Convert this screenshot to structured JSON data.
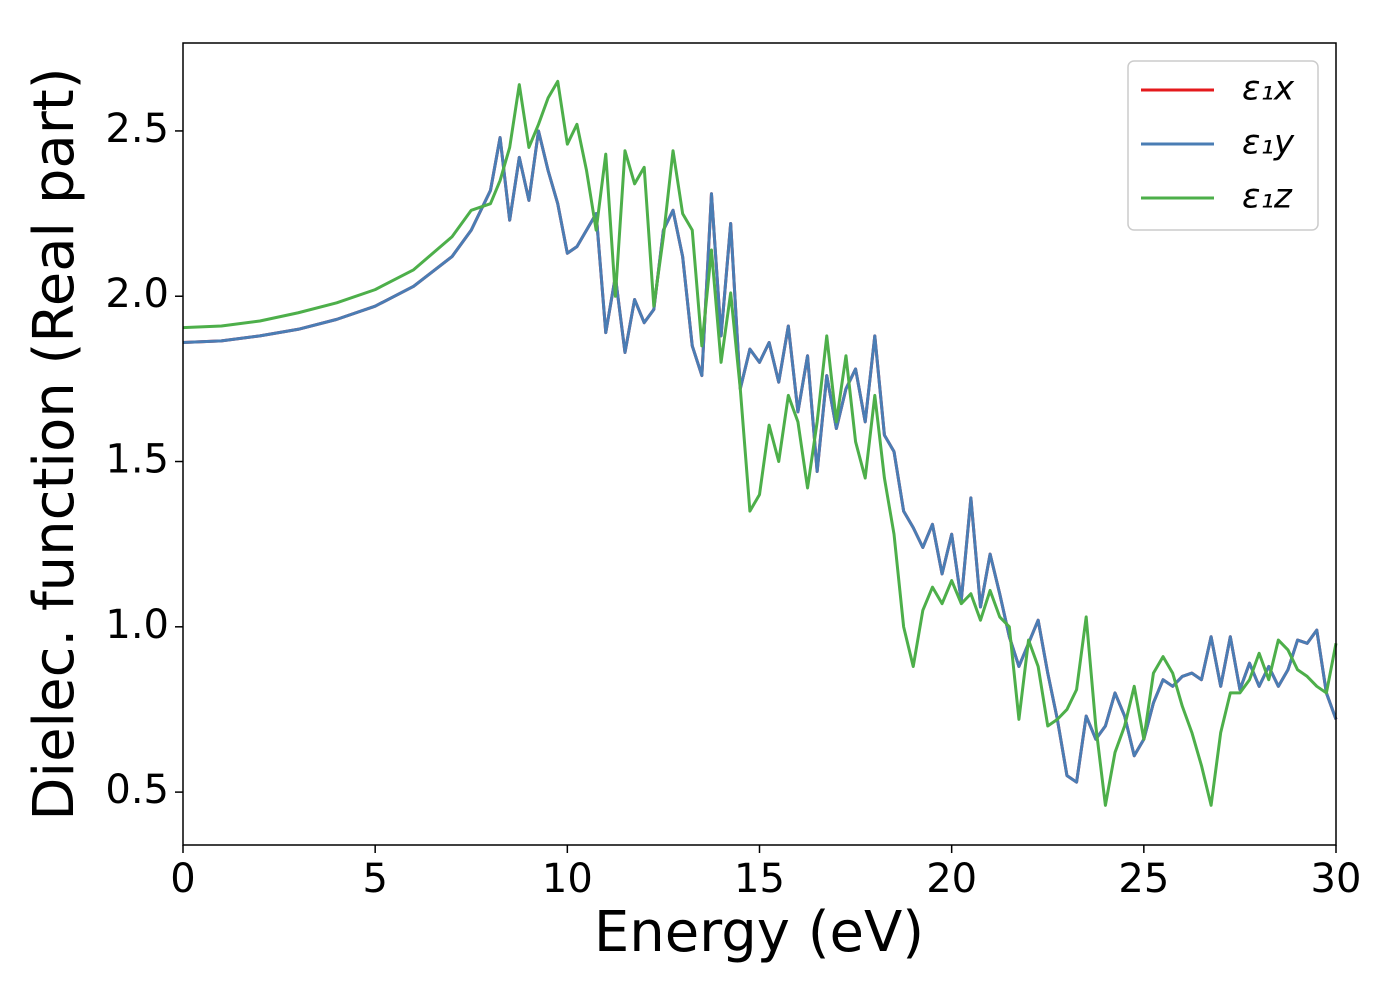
{
  "chart_data": {
    "type": "line",
    "xlabel": "Energy (eV)",
    "ylabel": "Dielec. function (Real part)",
    "x": [
      0,
      1,
      2,
      3,
      4,
      5,
      6,
      7,
      7.5,
      8,
      8.25,
      8.5,
      8.75,
      9,
      9.25,
      9.5,
      9.75,
      10,
      10.25,
      10.5,
      10.75,
      11,
      11.25,
      11.5,
      11.75,
      12,
      12.25,
      12.5,
      12.75,
      13,
      13.25,
      13.5,
      13.75,
      14,
      14.25,
      14.5,
      14.75,
      15,
      15.25,
      15.5,
      15.75,
      16,
      16.25,
      16.5,
      16.75,
      17,
      17.25,
      17.5,
      17.75,
      18,
      18.25,
      18.5,
      18.75,
      19,
      19.25,
      19.5,
      19.75,
      20,
      20.25,
      20.5,
      20.75,
      21,
      21.25,
      21.5,
      21.75,
      22,
      22.25,
      22.5,
      22.75,
      23,
      23.25,
      23.5,
      23.75,
      24,
      24.25,
      24.5,
      24.75,
      25,
      25.25,
      25.5,
      25.75,
      26,
      26.25,
      26.5,
      26.75,
      27,
      27.25,
      27.5,
      27.75,
      28,
      28.25,
      28.5,
      28.75,
      29,
      29.25,
      29.5,
      29.75,
      30
    ],
    "series": [
      {
        "name": "ε₁x",
        "color": "#e41a1c",
        "values": [
          1.86,
          1.865,
          1.88,
          1.9,
          1.93,
          1.97,
          2.03,
          2.12,
          2.2,
          2.32,
          2.48,
          2.23,
          2.42,
          2.29,
          2.5,
          2.38,
          2.28,
          2.13,
          2.15,
          2.2,
          2.25,
          1.89,
          2.06,
          1.83,
          1.99,
          1.92,
          1.96,
          2.2,
          2.26,
          2.12,
          1.85,
          1.76,
          2.31,
          1.88,
          2.22,
          1.72,
          1.84,
          1.8,
          1.86,
          1.74,
          1.91,
          1.65,
          1.82,
          1.47,
          1.76,
          1.6,
          1.72,
          1.78,
          1.62,
          1.88,
          1.58,
          1.53,
          1.35,
          1.3,
          1.24,
          1.31,
          1.16,
          1.28,
          1.08,
          1.39,
          1.06,
          1.22,
          1.1,
          0.97,
          0.88,
          0.95,
          1.02,
          0.86,
          0.72,
          0.55,
          0.53,
          0.73,
          0.66,
          0.7,
          0.8,
          0.73,
          0.61,
          0.66,
          0.77,
          0.84,
          0.82,
          0.85,
          0.86,
          0.84,
          0.97,
          0.82,
          0.97,
          0.81,
          0.89,
          0.82,
          0.88,
          0.82,
          0.87,
          0.96,
          0.95,
          0.99,
          0.8,
          0.72
        ]
      },
      {
        "name": "ε₁y",
        "color": "#4a7db4",
        "values": [
          1.86,
          1.865,
          1.88,
          1.9,
          1.93,
          1.97,
          2.03,
          2.12,
          2.2,
          2.32,
          2.48,
          2.23,
          2.42,
          2.29,
          2.5,
          2.38,
          2.28,
          2.13,
          2.15,
          2.2,
          2.25,
          1.89,
          2.06,
          1.83,
          1.99,
          1.92,
          1.96,
          2.2,
          2.26,
          2.12,
          1.85,
          1.76,
          2.31,
          1.88,
          2.22,
          1.72,
          1.84,
          1.8,
          1.86,
          1.74,
          1.91,
          1.65,
          1.82,
          1.47,
          1.76,
          1.6,
          1.72,
          1.78,
          1.62,
          1.88,
          1.58,
          1.53,
          1.35,
          1.3,
          1.24,
          1.31,
          1.16,
          1.28,
          1.08,
          1.39,
          1.06,
          1.22,
          1.1,
          0.97,
          0.88,
          0.95,
          1.02,
          0.86,
          0.72,
          0.55,
          0.53,
          0.73,
          0.66,
          0.7,
          0.8,
          0.73,
          0.61,
          0.66,
          0.77,
          0.84,
          0.82,
          0.85,
          0.86,
          0.84,
          0.97,
          0.82,
          0.97,
          0.81,
          0.89,
          0.82,
          0.88,
          0.82,
          0.87,
          0.96,
          0.95,
          0.99,
          0.8,
          0.72
        ]
      },
      {
        "name": "ε₁z",
        "color": "#4daf4a",
        "values": [
          1.905,
          1.91,
          1.925,
          1.95,
          1.98,
          2.02,
          2.08,
          2.18,
          2.26,
          2.28,
          2.35,
          2.45,
          2.64,
          2.45,
          2.52,
          2.6,
          2.65,
          2.46,
          2.52,
          2.38,
          2.2,
          2.43,
          2.0,
          2.44,
          2.34,
          2.39,
          1.97,
          2.18,
          2.44,
          2.25,
          2.2,
          1.85,
          2.14,
          1.8,
          2.01,
          1.72,
          1.35,
          1.4,
          1.61,
          1.5,
          1.7,
          1.62,
          1.42,
          1.62,
          1.88,
          1.62,
          1.82,
          1.56,
          1.45,
          1.7,
          1.45,
          1.28,
          1.0,
          0.88,
          1.05,
          1.12,
          1.07,
          1.14,
          1.07,
          1.1,
          1.02,
          1.11,
          1.03,
          1.0,
          0.72,
          0.96,
          0.88,
          0.7,
          0.72,
          0.75,
          0.81,
          1.03,
          0.7,
          0.46,
          0.62,
          0.7,
          0.82,
          0.66,
          0.86,
          0.91,
          0.86,
          0.76,
          0.68,
          0.58,
          0.46,
          0.68,
          0.8,
          0.8,
          0.84,
          0.92,
          0.84,
          0.96,
          0.93,
          0.87,
          0.85,
          0.82,
          0.8,
          0.95
        ]
      }
    ],
    "xlim": [
      0,
      30
    ],
    "xticks": [
      0,
      5,
      10,
      15,
      20,
      25,
      30
    ],
    "ylim": [
      0.34,
      2.766
    ],
    "yticks": [
      0.5,
      {
        "value": 1,
        "label": "1.0"
      },
      1.5,
      {
        "value": 2,
        "label": "2.0"
      },
      2.5
    ],
    "grid": false,
    "legend": "upper right"
  }
}
